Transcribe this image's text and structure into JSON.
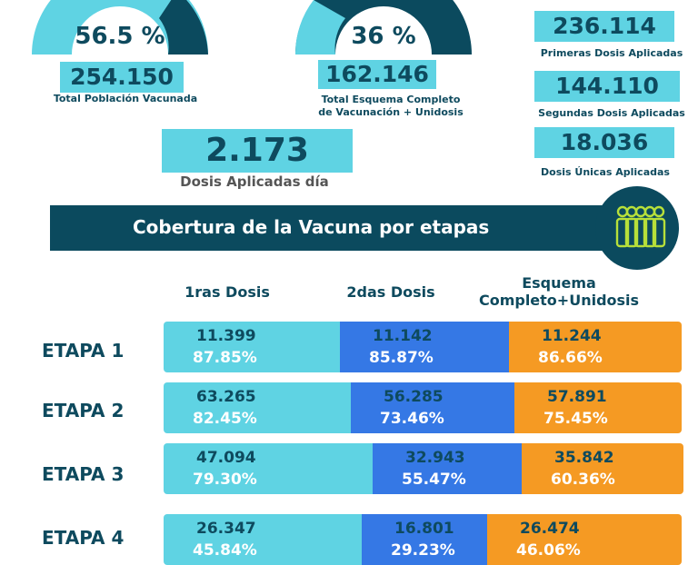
{
  "colors": {
    "teal": "#5fd3e3",
    "navy": "#0b4a5e",
    "blue": "#3578e5",
    "orange": "#f59a23",
    "text_dark": "#0e4a5e",
    "white": "#ffffff"
  },
  "summary": {
    "gauge1_pct": "56.5 %",
    "gauge1_value": 0.565,
    "gauge2_pct": "36 %",
    "gauge2_value": 0.36,
    "total_vacunada_num": "254.150",
    "total_vacunada_label": "Total Población Vacunada",
    "esquema_num": "162.146",
    "esquema_label_1": "Total Esquema Completo",
    "esquema_label_2": "de Vacunación + Unidosis",
    "primeras_num": "236.114",
    "primeras_label": "Primeras Dosis Aplicadas",
    "segundas_num": "144.110",
    "segundas_label": "Segundas Dosis Aplicadas",
    "unicas_num": "18.036",
    "unicas_label": "Dosis Únicas Aplicadas",
    "dia_num": "2.173",
    "dia_label": "Dosis Aplicadas día"
  },
  "banner": {
    "title": "Cobertura de la Vacuna por etapas",
    "icon": "people-group-icon"
  },
  "columns": {
    "c1": "1ras Dosis",
    "c2": "2das Dosis",
    "c3_line1": "Esquema",
    "c3_line2": "Completo+Unidosis"
  },
  "etapas": [
    {
      "label": "ETAPA 1",
      "d1": "11.399",
      "p1": "87.85%",
      "d2": "11.142",
      "p2": "85.87%",
      "d3": "11.244",
      "p3": "86.66%"
    },
    {
      "label": "ETAPA 2",
      "d1": "63.265",
      "p1": "82.45%",
      "d2": "56.285",
      "p2": "73.46%",
      "d3": "57.891",
      "p3": "75.45%"
    },
    {
      "label": "ETAPA 3",
      "d1": "47.094",
      "p1": "79.30%",
      "d2": "32.943",
      "p2": "55.47%",
      "d3": "35.842",
      "p3": "60.36%"
    },
    {
      "label": "ETAPA 4",
      "d1": "26.347",
      "p1": "45.84%",
      "d2": "16.801",
      "p2": "29.23%",
      "d3": "26.474",
      "p3": "46.06%"
    }
  ]
}
